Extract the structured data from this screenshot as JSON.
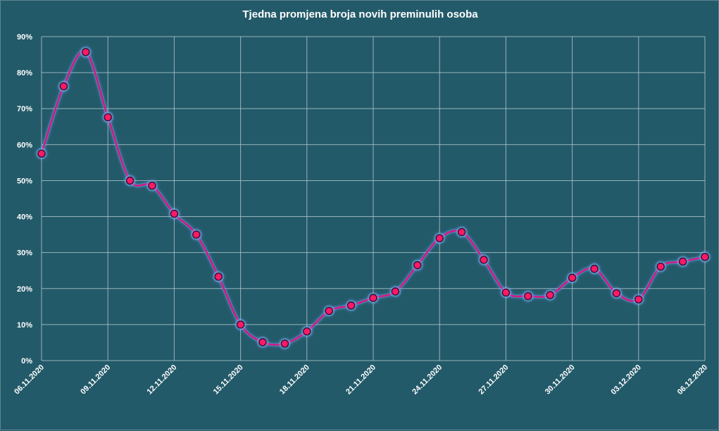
{
  "chart_data": {
    "type": "line",
    "title": "Tjedna promjena broja novih preminulih osoba",
    "xlabel": "",
    "ylabel": "",
    "ylim": [
      0,
      90
    ],
    "y_ticks": [
      "0%",
      "10%",
      "20%",
      "30%",
      "40%",
      "50%",
      "60%",
      "70%",
      "80%",
      "90%"
    ],
    "y_tick_values": [
      0,
      10,
      20,
      30,
      40,
      50,
      60,
      70,
      80,
      90
    ],
    "x_tick_labels": [
      "06.11.2020",
      "09.11.2020",
      "12.11.2020",
      "15.11.2020",
      "18.11.2020",
      "21.11.2020",
      "24.11.2020",
      "27.11.2020",
      "30.11.2020",
      "03.12.2020",
      "06.12.2020"
    ],
    "x": [
      "06.11.2020",
      "07.11.2020",
      "08.11.2020",
      "09.11.2020",
      "10.11.2020",
      "11.11.2020",
      "12.11.2020",
      "13.11.2020",
      "14.11.2020",
      "15.11.2020",
      "16.11.2020",
      "17.11.2020",
      "18.11.2020",
      "19.11.2020",
      "20.11.2020",
      "21.11.2020",
      "22.11.2020",
      "23.11.2020",
      "24.11.2020",
      "25.11.2020",
      "26.11.2020",
      "27.11.2020",
      "28.11.2020",
      "29.11.2020",
      "30.11.2020",
      "01.12.2020",
      "02.12.2020",
      "03.12.2020",
      "04.12.2020",
      "05.12.2020",
      "06.12.2020"
    ],
    "series": [
      {
        "values": [
          57.5,
          76.2,
          85.7,
          67.6,
          50.0,
          48.6,
          40.8,
          35.0,
          23.3,
          10.0,
          5.1,
          4.7,
          8.1,
          13.8,
          15.3,
          17.4,
          19.2,
          26.5,
          34.0,
          35.7,
          28.0,
          18.9,
          17.9,
          18.2,
          23.0,
          25.5,
          18.7,
          17.0,
          26.1,
          27.5,
          28.8
        ]
      }
    ],
    "grid": true,
    "legend": "none",
    "colors": {
      "background": "#235a69",
      "grid": "#aac3ca",
      "line": "#d6197c",
      "marker_fill": "#ff1a66",
      "marker_stroke": "#38082a",
      "text": "#ffffff"
    }
  }
}
